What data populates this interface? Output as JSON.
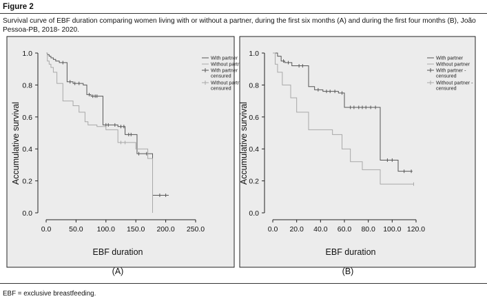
{
  "figure": {
    "label": "Figure 2",
    "caption": "Survival curve of EBF duration comparing women living with or without a partner, during the first six months (A) and during the first four months (B), João Pessoa-PB, 2018- 2020.",
    "footnote": "EBF = exclusive breastfeeding."
  },
  "colors": {
    "with_partner": "#555555",
    "without_partner": "#a8a8a8",
    "panel_background": "#ececec"
  },
  "chart_data": [
    {
      "type": "line",
      "step": true,
      "panel_label": "(A)",
      "xlabel": "EBF duration",
      "ylabel": "Accumulative survival",
      "xlim": [
        0,
        250
      ],
      "ylim": [
        0,
        1.0
      ],
      "xticks": [
        "0.0",
        "50.0",
        "100.0",
        "150.0",
        "200.0",
        "250.0"
      ],
      "yticks": [
        "0.0",
        "0.2",
        "0.4",
        "0.6",
        "0.8",
        "1.0"
      ],
      "legend_position": "right",
      "legend": [
        "With partner",
        "Without partner",
        "With partner - censured",
        "Without partner - censured"
      ],
      "series": [
        {
          "name": "With partner",
          "x": [
            0,
            2,
            5,
            8,
            12,
            16,
            22,
            35,
            45,
            52,
            62,
            68,
            75,
            88,
            95,
            108,
            120,
            132,
            145,
            152,
            160,
            172,
            178
          ],
          "y": [
            1.0,
            0.99,
            0.98,
            0.97,
            0.96,
            0.95,
            0.94,
            0.82,
            0.81,
            0.81,
            0.8,
            0.74,
            0.73,
            0.73,
            0.55,
            0.55,
            0.54,
            0.49,
            0.49,
            0.37,
            0.37,
            0.37,
            0.11
          ],
          "end_x": 205,
          "censored_x": [
            28,
            40,
            48,
            55,
            72,
            78,
            82,
            85,
            100,
            104,
            115,
            125,
            130,
            138,
            142,
            155,
            168,
            190,
            200
          ]
        },
        {
          "name": "Without partner",
          "x": [
            0,
            2,
            5,
            8,
            12,
            18,
            28,
            45,
            55,
            65,
            70,
            85,
            100,
            120,
            150,
            170,
            178
          ],
          "y": [
            1.0,
            0.95,
            0.93,
            0.91,
            0.88,
            0.81,
            0.7,
            0.67,
            0.63,
            0.57,
            0.55,
            0.54,
            0.52,
            0.44,
            0.4,
            0.34,
            0.0
          ],
          "end_x": 178,
          "censored_x": [
            125,
            132
          ]
        }
      ]
    },
    {
      "type": "line",
      "step": true,
      "panel_label": "(B)",
      "xlabel": "EBF duration",
      "ylabel": "Accumulative survival",
      "xlim": [
        0,
        120
      ],
      "ylim": [
        0,
        1.0
      ],
      "xticks": [
        "0.0",
        "20.0",
        "40.0",
        "60.0",
        "80.0",
        "100.0",
        "120.0"
      ],
      "yticks": [
        "0.0",
        "0.2",
        "0.4",
        "0.6",
        "0.8",
        "1.0"
      ],
      "legend_position": "right",
      "legend": [
        "With partner",
        "Without partner",
        "With partner - censured",
        "Without partner - censured"
      ],
      "series": [
        {
          "name": "With partner",
          "x": [
            0,
            4,
            7,
            10,
            16,
            30,
            35,
            42,
            55,
            60,
            90,
            105
          ],
          "y": [
            1.0,
            0.98,
            0.95,
            0.94,
            0.92,
            0.79,
            0.77,
            0.76,
            0.75,
            0.66,
            0.33,
            0.26
          ],
          "end_x": 117,
          "censored_x": [
            9,
            13,
            22,
            25,
            38,
            45,
            48,
            52,
            58,
            65,
            68,
            72,
            75,
            78,
            82,
            86,
            96,
            100,
            110,
            116
          ]
        },
        {
          "name": "Without partner",
          "x": [
            0,
            2,
            4,
            8,
            12,
            15,
            20,
            30,
            50,
            58,
            65,
            75,
            90
          ],
          "y": [
            1.0,
            0.93,
            0.88,
            0.8,
            0.8,
            0.72,
            0.63,
            0.52,
            0.49,
            0.4,
            0.32,
            0.27,
            0.18
          ],
          "end_x": 118,
          "censored_x": [
            118
          ]
        }
      ]
    }
  ]
}
